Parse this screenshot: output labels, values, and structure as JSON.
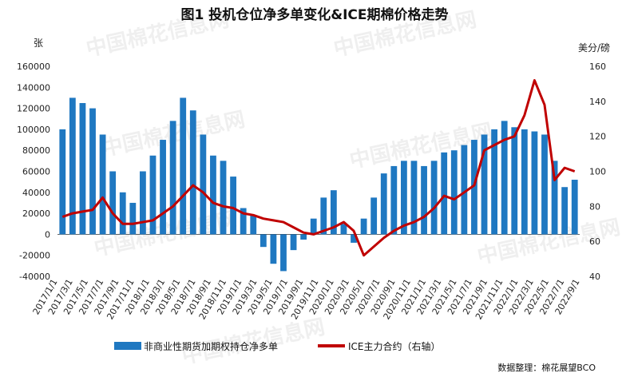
{
  "chart_data": {
    "type": "bar+line",
    "title": "图1  投机仓位净多单变化&ICE期棉价格走势",
    "source": "数据整理：棉花展望BCO",
    "left_axis": {
      "unit": "张",
      "min": -40000,
      "max": 160000,
      "ticks": [
        "-40000",
        "-20000",
        "0",
        "20000",
        "40000",
        "60000",
        "80000",
        "100000",
        "120000",
        "140000",
        "160000"
      ]
    },
    "right_axis": {
      "unit": "美分/磅",
      "min": 40,
      "max": 160,
      "ticks": [
        "40",
        "60",
        "80",
        "100",
        "120",
        "140",
        "160"
      ]
    },
    "x_labels": [
      "2017/1/1",
      "2017/3/1",
      "2017/5/1",
      "2017/7/1",
      "2017/9/1",
      "2017/11/1",
      "2018/1/1",
      "2018/3/1",
      "2018/5/1",
      "2018/7/1",
      "2018/9/1",
      "2018/11/1",
      "2019/1/1",
      "2019/3/1",
      "2019/5/1",
      "2019/7/1",
      "2019/9/1",
      "2019/11/1",
      "2020/1/1",
      "2020/3/1",
      "2020/5/1",
      "2020/7/1",
      "2020/9/1",
      "2020/11/1",
      "2021/1/1",
      "2021/3/1",
      "2021/5/1",
      "2021/7/1",
      "2021/9/1",
      "2021/11/1",
      "2022/1/1",
      "2022/3/1",
      "2022/5/1",
      "2022/7/1",
      "2022/9/1"
    ],
    "grid": false,
    "legend_position": "bottom",
    "series": [
      {
        "name": "非商业性期货加期权持仓净多单",
        "kind": "bar",
        "axis": "left",
        "color": "#1f78c1",
        "values": [
          100000,
          130000,
          125000,
          120000,
          95000,
          60000,
          40000,
          30000,
          60000,
          75000,
          90000,
          108000,
          130000,
          118000,
          95000,
          75000,
          70000,
          55000,
          25000,
          18000,
          -12000,
          -28000,
          -35000,
          -15000,
          -5000,
          15000,
          35000,
          42000,
          10000,
          -8000,
          15000,
          35000,
          58000,
          65000,
          70000,
          70000,
          65000,
          70000,
          78000,
          80000,
          85000,
          90000,
          95000,
          100000,
          108000,
          102000,
          100000,
          98000,
          95000,
          70000,
          45000,
          52000
        ]
      },
      {
        "name": "ICE主力合约（右轴）",
        "kind": "line",
        "axis": "right",
        "color": "#c00000",
        "values": [
          74,
          76,
          77,
          78,
          85,
          76,
          70,
          70,
          71,
          72,
          76,
          80,
          86,
          92,
          88,
          82,
          80,
          79,
          76,
          75,
          73,
          72,
          71,
          68,
          65,
          64,
          66,
          68,
          71,
          66,
          52,
          57,
          62,
          66,
          69,
          71,
          74,
          79,
          86,
          84,
          88,
          92,
          112,
          115,
          118,
          120,
          132,
          152,
          138,
          95,
          102,
          100
        ]
      }
    ]
  },
  "watermark": "中国棉花信息网 www.cottonchina.org.cn"
}
